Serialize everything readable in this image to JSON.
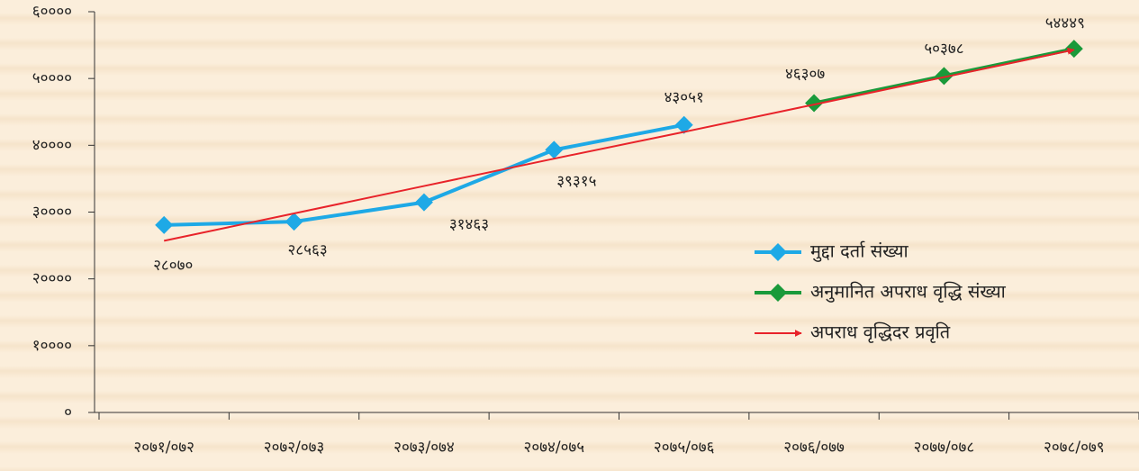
{
  "chart_data": {
    "type": "line",
    "categories": [
      "२०७१/०७२",
      "२०७२/०७३",
      "२०७३/०७४",
      "२०७४/०७५",
      "२०७५/०७६",
      "२०७६/०७७",
      "२०७७/०७८",
      "२०७८/०७९"
    ],
    "series": [
      {
        "name": "मुद्दा दर्ता संख्या",
        "color": "#1ea9e6",
        "marker": "diamond",
        "values": [
          28070,
          28563,
          31463,
          39315,
          43051,
          null,
          null,
          null
        ],
        "value_labels": [
          "२८०७०",
          "२८५६३",
          "३१४६३",
          "३९३१५",
          "४३०५१",
          null,
          null,
          null
        ]
      },
      {
        "name": "अनुमानित अपराध वृद्धि संख्या",
        "color": "#1a9a3a",
        "marker": "diamond",
        "values": [
          null,
          null,
          null,
          null,
          null,
          46307,
          50378,
          54449
        ],
        "value_labels": [
          null,
          null,
          null,
          null,
          null,
          "४६३०७",
          "५०३७८",
          "५४४४९"
        ]
      },
      {
        "name": "अपराध वृद्धिदर प्रवृति",
        "color": "#e8232a",
        "marker": "arrow",
        "values": [
          25700,
          29800,
          33900,
          38000,
          42000,
          46100,
          50200,
          54300
        ]
      }
    ],
    "ylim": [
      0,
      60000
    ],
    "yticks": [
      {
        "value": 0,
        "label": "०"
      },
      {
        "value": 10000,
        "label": "१००००"
      },
      {
        "value": 20000,
        "label": "२००००"
      },
      {
        "value": 30000,
        "label": "३००००"
      },
      {
        "value": 40000,
        "label": "४००००"
      },
      {
        "value": 50000,
        "label": "५००००"
      },
      {
        "value": 60000,
        "label": "६००००"
      }
    ],
    "legend": "right"
  }
}
